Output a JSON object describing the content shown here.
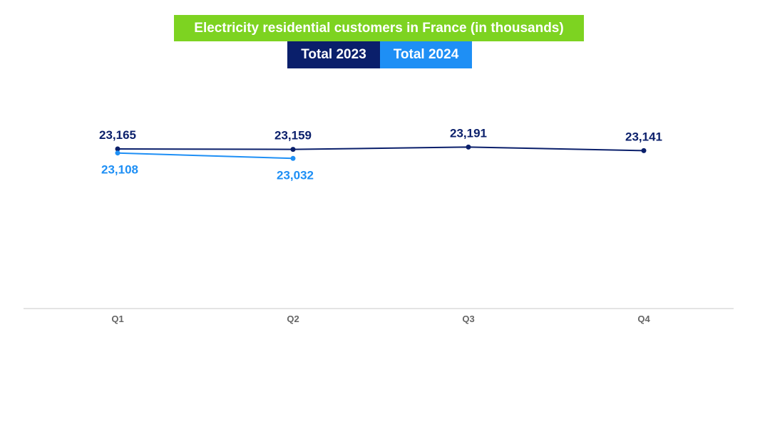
{
  "chart_data": {
    "type": "line",
    "title": "Electricity residential customers in France (in thousands)",
    "categories": [
      "Q1",
      "Q2",
      "Q3",
      "Q4"
    ],
    "series": [
      {
        "name": "Total 2023",
        "color": "#0a1f6b",
        "values": [
          23165,
          23159,
          23191,
          23141
        ],
        "labels": [
          "23,165",
          "23,159",
          "23,191",
          "23,141"
        ]
      },
      {
        "name": "Total 2024",
        "color": "#1e8ff5",
        "values": [
          23108,
          23032,
          null,
          null
        ],
        "labels": [
          "23,108",
          "23,032",
          null,
          null
        ]
      }
    ],
    "xlabel": "",
    "ylabel": "",
    "legend_position": "top-center",
    "grid": false,
    "title_color": "#7dd321"
  }
}
